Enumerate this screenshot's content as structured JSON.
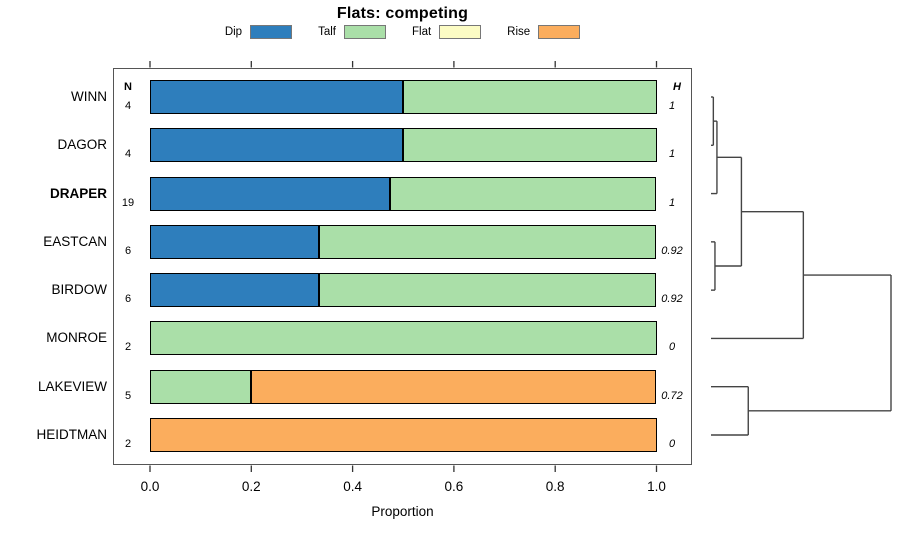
{
  "title": "Flats: competing",
  "legend": {
    "items": [
      {
        "label": "Dip",
        "color": "#2E7EBC"
      },
      {
        "label": "Talf",
        "color": "#AADFA8"
      },
      {
        "label": "Flat",
        "color": "#FCFCC4"
      },
      {
        "label": "Rise",
        "color": "#FBAD5D"
      }
    ]
  },
  "columns": {
    "n_header": "N",
    "h_header": "H"
  },
  "axis": {
    "title": "Proportion",
    "ticks": [
      "0.0",
      "0.2",
      "0.4",
      "0.6",
      "0.8",
      "1.0"
    ],
    "values": [
      0,
      0.2,
      0.4,
      0.6,
      0.8,
      1.0
    ]
  },
  "chart_data": {
    "type": "bar",
    "orientation": "horizontal",
    "stacked": true,
    "title": "Flats: competing",
    "xlabel": "Proportion",
    "xlim": [
      0,
      1
    ],
    "grid": false,
    "legend_position": "top",
    "rows": [
      {
        "name": "WINN",
        "bold": false,
        "n": 4,
        "H": "1",
        "segments": [
          {
            "type": "Dip",
            "value": 0.5
          },
          {
            "type": "Talf",
            "value": 0.5
          }
        ]
      },
      {
        "name": "DAGOR",
        "bold": false,
        "n": 4,
        "H": "1",
        "segments": [
          {
            "type": "Dip",
            "value": 0.5
          },
          {
            "type": "Talf",
            "value": 0.5
          }
        ]
      },
      {
        "name": "DRAPER",
        "bold": true,
        "n": 19,
        "H": "1",
        "segments": [
          {
            "type": "Dip",
            "value": 0.474
          },
          {
            "type": "Talf",
            "value": 0.526
          }
        ]
      },
      {
        "name": "EASTCAN",
        "bold": false,
        "n": 6,
        "H": "0.92",
        "segments": [
          {
            "type": "Dip",
            "value": 0.333
          },
          {
            "type": "Talf",
            "value": 0.667
          }
        ]
      },
      {
        "name": "BIRDOW",
        "bold": false,
        "n": 6,
        "H": "0.92",
        "segments": [
          {
            "type": "Dip",
            "value": 0.333
          },
          {
            "type": "Talf",
            "value": 0.667
          }
        ]
      },
      {
        "name": "MONROE",
        "bold": false,
        "n": 2,
        "H": "0",
        "segments": [
          {
            "type": "Talf",
            "value": 1.0
          }
        ]
      },
      {
        "name": "LAKEVIEW",
        "bold": false,
        "n": 5,
        "H": "0.72",
        "segments": [
          {
            "type": "Talf",
            "value": 0.2
          },
          {
            "type": "Rise",
            "value": 0.8
          }
        ]
      },
      {
        "name": "HEIDTMAN",
        "bold": false,
        "n": 2,
        "H": "0",
        "segments": [
          {
            "type": "Rise",
            "value": 1.0
          }
        ]
      }
    ],
    "dendrogram": {
      "leaf_order": [
        "WINN",
        "DAGOR",
        "DRAPER",
        "EASTCAN",
        "BIRDOW",
        "MONROE",
        "LAKEVIEW",
        "HEIDTMAN"
      ],
      "merges": [
        {
          "id": "n1",
          "a": "WINN",
          "b": "DAGOR",
          "height": 0.013
        },
        {
          "id": "n2",
          "a": "n1",
          "b": "DRAPER",
          "height": 0.033
        },
        {
          "id": "n3",
          "a": "EASTCAN",
          "b": "BIRDOW",
          "height": 0.022
        },
        {
          "id": "n4",
          "a": "n2",
          "b": "n3",
          "height": 0.169
        },
        {
          "id": "n5",
          "a": "n4",
          "b": "MONROE",
          "height": 0.513
        },
        {
          "id": "n6",
          "a": "LAKEVIEW",
          "b": "HEIDTMAN",
          "height": 0.207
        },
        {
          "id": "n7",
          "a": "n5",
          "b": "n6",
          "height": 1.0
        }
      ]
    }
  }
}
